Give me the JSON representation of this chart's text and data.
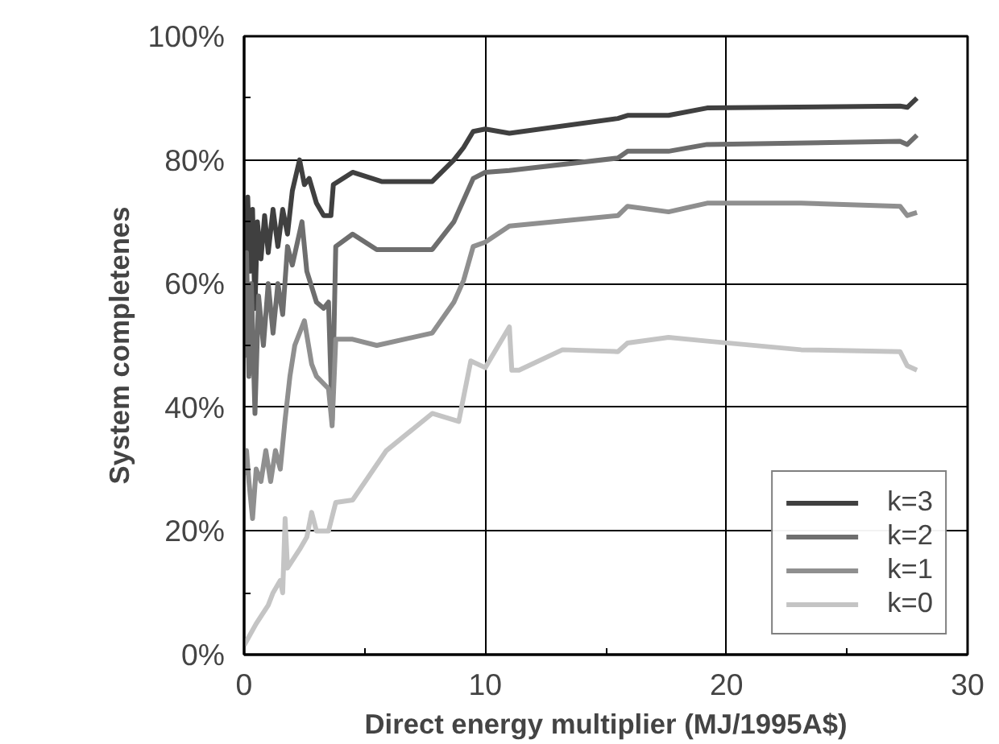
{
  "chart_data": {
    "type": "line",
    "xlabel": "Direct energy multiplier (MJ/1995A$)",
    "ylabel": "System completenes",
    "xlim": [
      0,
      30
    ],
    "xticks": [
      0,
      {
        "value": 5,
        "label": null
      },
      10,
      {
        "value": 15,
        "label": null
      },
      20,
      {
        "value": 25,
        "label": null
      },
      30
    ],
    "ylim": [
      0,
      100
    ],
    "yticks": [
      {
        "value": 0,
        "label": "0%"
      },
      {
        "value": 10,
        "label": null
      },
      {
        "value": 20,
        "label": "20%"
      },
      {
        "value": 30,
        "label": null
      },
      {
        "value": 40,
        "label": "40%"
      },
      {
        "value": 50,
        "label": null
      },
      {
        "value": 60,
        "label": "60%"
      },
      {
        "value": 70,
        "label": null
      },
      {
        "value": 80,
        "label": "80%"
      },
      {
        "value": 90,
        "label": null
      },
      {
        "value": 100,
        "label": "100%"
      }
    ],
    "grid": true,
    "legend": "bottom right",
    "marker": "none",
    "line_style": "solid",
    "series": [
      {
        "name": "k=3",
        "color": "#404040",
        "x": [
          0.05,
          0.15,
          0.25,
          0.35,
          0.45,
          0.55,
          0.7,
          0.85,
          1.0,
          1.2,
          1.4,
          1.6,
          1.8,
          2.0,
          2.3,
          2.5,
          2.7,
          3.0,
          3.3,
          3.6,
          3.7,
          4.5,
          5.7,
          7.8,
          8.7,
          9.1,
          9.5,
          10,
          11,
          15.5,
          15.9,
          17.6,
          19.2,
          27.2,
          27.5,
          27.9
        ],
        "values": [
          60,
          74,
          62,
          72,
          56,
          70,
          64,
          71,
          65,
          72,
          66,
          72,
          68,
          75,
          80,
          76,
          77,
          73,
          71,
          71,
          76,
          78,
          76.5,
          76.5,
          80,
          82,
          84.6,
          85,
          84.3,
          86.7,
          87.2,
          87.2,
          88.4,
          88.7,
          88.5,
          90
        ]
      },
      {
        "name": "k=2",
        "color": "#6e6e6e",
        "x": [
          0.05,
          0.1,
          0.2,
          0.3,
          0.45,
          0.6,
          0.8,
          1.0,
          1.2,
          1.4,
          1.6,
          1.8,
          2.0,
          2.4,
          2.6,
          3.0,
          3.3,
          3.5,
          3.65,
          3.8,
          4.5,
          5.5,
          7.8,
          8.7,
          9.5,
          10,
          11,
          15.5,
          15.9,
          17.6,
          19.2,
          27.2,
          27.5,
          27.9
        ],
        "values": [
          48,
          65,
          45,
          60,
          39,
          58,
          50,
          60,
          52,
          60,
          55,
          66,
          63,
          70,
          62,
          57,
          56,
          57,
          38,
          66,
          68,
          65.5,
          65.5,
          70,
          77,
          78,
          78.3,
          80.3,
          81.4,
          81.4,
          82.5,
          83,
          82.5,
          84
        ]
      },
      {
        "name": "k=1",
        "color": "#8f8f8f",
        "x": [
          0.05,
          0.1,
          0.2,
          0.35,
          0.5,
          0.7,
          0.9,
          1.1,
          1.3,
          1.5,
          1.7,
          1.9,
          2.1,
          2.5,
          2.8,
          3.0,
          3.5,
          3.65,
          3.8,
          4.5,
          5.5,
          7.8,
          8.7,
          9.1,
          9.5,
          10,
          11,
          15.5,
          15.9,
          17.6,
          19.2,
          23.1,
          27.2,
          27.5,
          27.9
        ],
        "values": [
          29,
          33,
          28,
          22,
          30,
          28,
          33,
          28,
          33,
          30,
          38,
          45,
          50,
          54,
          47,
          45,
          43,
          37,
          51,
          51,
          50,
          52,
          57,
          60.5,
          66,
          66.7,
          69.3,
          71,
          72.5,
          71.6,
          73,
          73,
          72.5,
          71,
          71.5
        ]
      },
      {
        "name": "k=0",
        "color": "#c4c4c4",
        "x": [
          0.0,
          0.5,
          1.0,
          1.2,
          1.5,
          1.6,
          1.7,
          1.8,
          2.3,
          2.6,
          2.8,
          3.0,
          3.5,
          3.8,
          4.5,
          5.9,
          7.8,
          8.9,
          9.4,
          10,
          11,
          11.1,
          11.4,
          13.2,
          15.5,
          15.9,
          17.6,
          19.2,
          23.1,
          27.2,
          27.5,
          27.9
        ],
        "values": [
          1.5,
          5,
          8,
          10,
          12,
          10,
          22,
          14,
          17,
          19,
          23,
          20,
          20,
          24.6,
          25,
          33,
          39,
          37.7,
          47.5,
          46.4,
          53,
          46,
          46,
          49.3,
          49,
          50.4,
          51.3,
          50.7,
          49.3,
          49,
          46.7,
          46
        ]
      }
    ]
  }
}
